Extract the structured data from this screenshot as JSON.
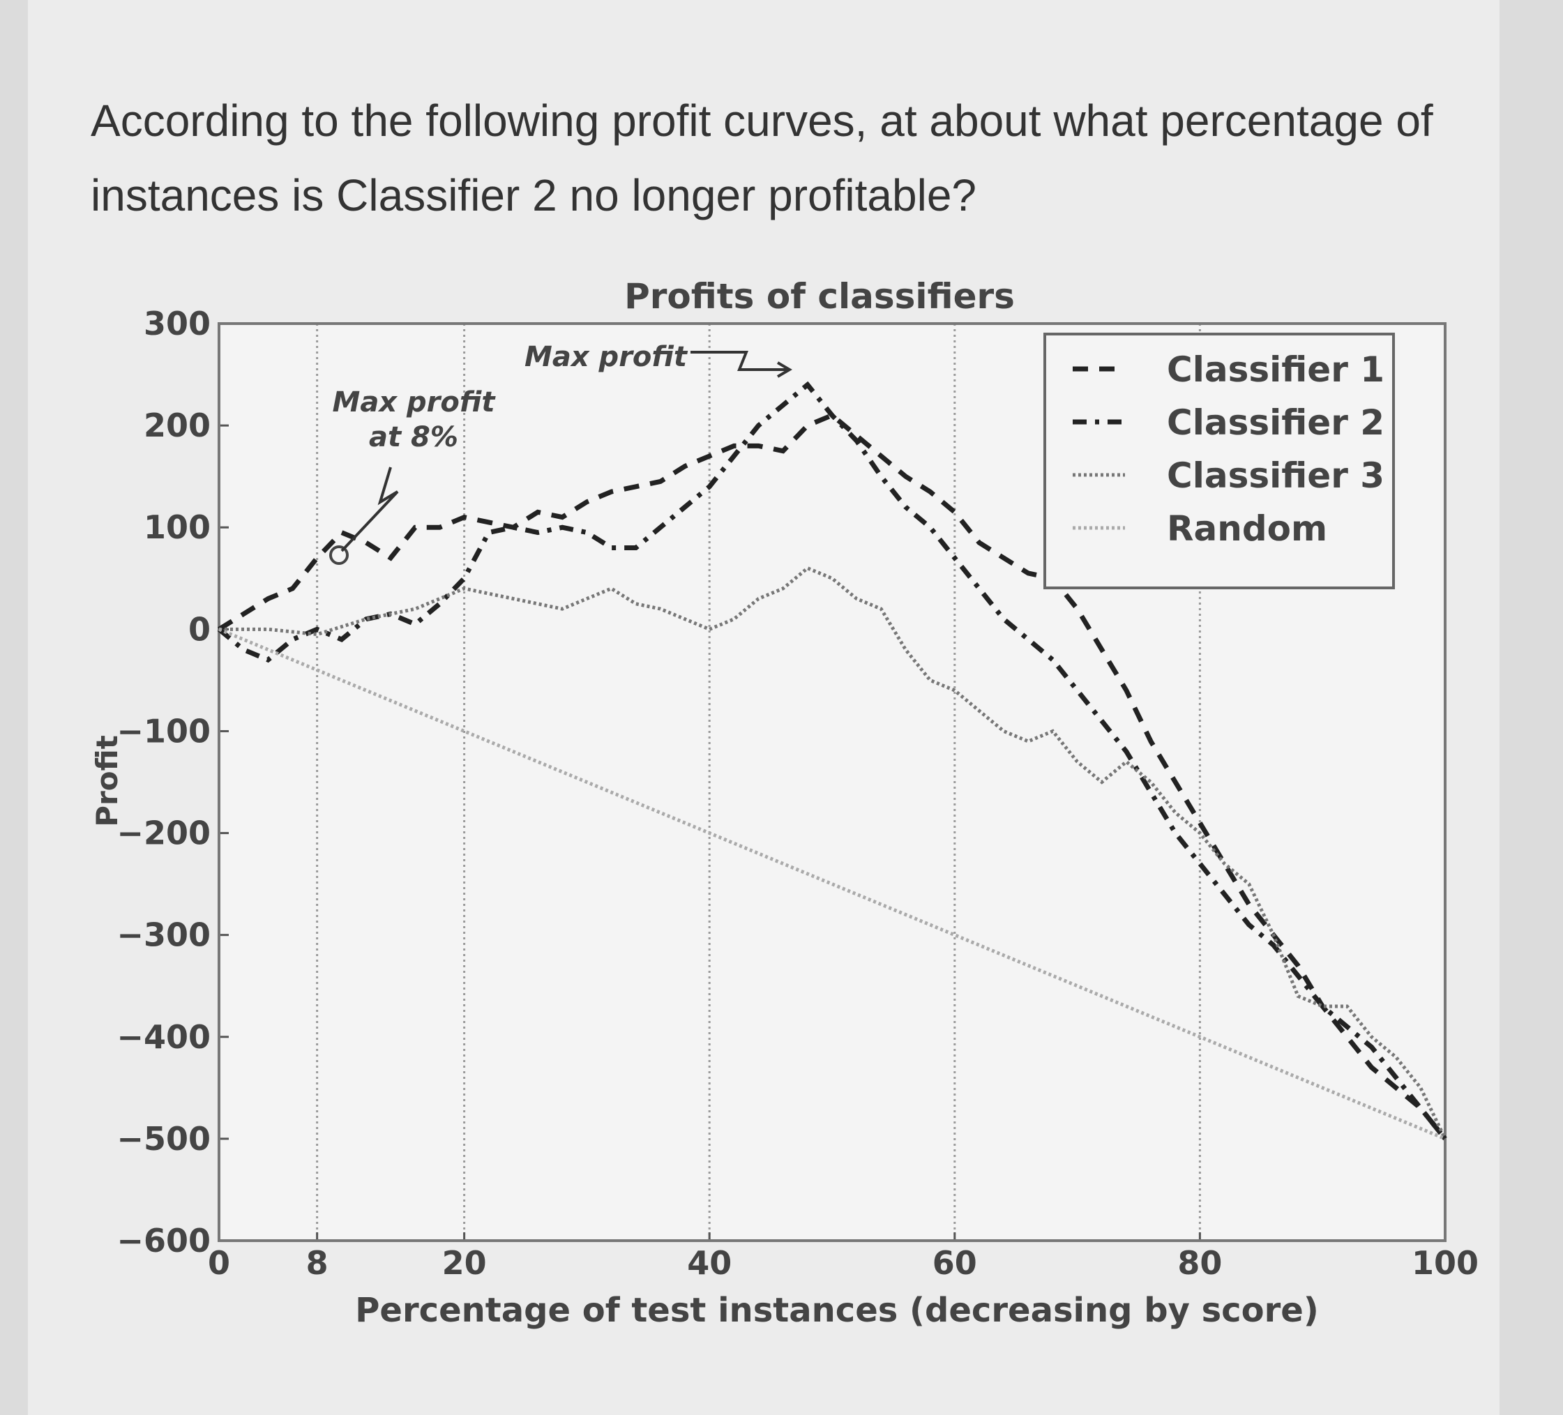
{
  "question": "According to the following profit curves, at about what percentage of instances is Classifier 2 no longer profitable?",
  "chart_data": {
    "type": "line",
    "title": "Profits of classifiers",
    "x_label": "Percentage of test instances (decreasing by score)",
    "y_label": "Profit",
    "xlim": [
      0,
      100
    ],
    "ylim": [
      -600,
      300
    ],
    "xticks": [
      0,
      8,
      20,
      40,
      60,
      80,
      100
    ],
    "yticks": [
      300,
      200,
      100,
      0,
      {
        "value": -100,
        "label": "−100"
      },
      {
        "value": -200,
        "label": "−200"
      },
      {
        "value": -300,
        "label": "−300"
      },
      {
        "value": -400,
        "label": "−400"
      },
      {
        "value": -500,
        "label": "−500"
      },
      {
        "value": -600,
        "label": "−600"
      }
    ],
    "grid": "x",
    "legend": "upper right",
    "annotations": [
      "Max profit",
      "at 8%",
      "Max profit"
    ],
    "series": [
      {
        "name": "Classifier 1",
        "color": "#222222",
        "linestyle": "dashed",
        "x": [
          0,
          2,
          4,
          6,
          8,
          10,
          12,
          14,
          16,
          18,
          20,
          22,
          24,
          26,
          28,
          30,
          32,
          34,
          36,
          38,
          40,
          42,
          44,
          46,
          48,
          50,
          52,
          54,
          56,
          58,
          60,
          62,
          64,
          66,
          68,
          70,
          72,
          74,
          76,
          78,
          80,
          82,
          84,
          86,
          88,
          90,
          92,
          94,
          96,
          98,
          100
        ],
        "values": [
          0,
          15,
          30,
          40,
          70,
          95,
          85,
          70,
          100,
          100,
          110,
          105,
          100,
          115,
          110,
          125,
          135,
          140,
          145,
          160,
          170,
          180,
          180,
          175,
          200,
          210,
          190,
          170,
          150,
          135,
          115,
          85,
          70,
          55,
          50,
          20,
          -20,
          -60,
          -110,
          -150,
          -190,
          -230,
          -270,
          -300,
          -330,
          -370,
          -400,
          -430,
          -450,
          -470,
          -500
        ]
      },
      {
        "name": "Classifier 2",
        "color": "#222222",
        "linestyle": "dashdot",
        "x": [
          0,
          2,
          4,
          6,
          8,
          10,
          12,
          14,
          16,
          18,
          20,
          22,
          24,
          26,
          28,
          30,
          32,
          34,
          36,
          38,
          40,
          42,
          44,
          46,
          48,
          50,
          52,
          54,
          56,
          58,
          60,
          62,
          64,
          66,
          68,
          70,
          72,
          74,
          76,
          78,
          80,
          82,
          84,
          86,
          88,
          90,
          92,
          94,
          96,
          98,
          100
        ],
        "values": [
          0,
          -20,
          -30,
          -10,
          0,
          -10,
          10,
          15,
          5,
          25,
          50,
          95,
          100,
          95,
          100,
          95,
          80,
          80,
          100,
          120,
          140,
          170,
          200,
          220,
          240,
          210,
          185,
          150,
          120,
          100,
          70,
          40,
          10,
          -10,
          -30,
          -60,
          -90,
          -120,
          -160,
          -200,
          -230,
          -260,
          -290,
          -310,
          -340,
          -370,
          -390,
          -410,
          -440,
          -470,
          -500
        ]
      },
      {
        "name": "Classifier 3",
        "color": "#777777",
        "linestyle": "dotted",
        "x": [
          0,
          4,
          8,
          12,
          16,
          20,
          24,
          28,
          30,
          32,
          34,
          36,
          38,
          40,
          42,
          44,
          46,
          48,
          50,
          52,
          54,
          56,
          58,
          60,
          62,
          64,
          66,
          68,
          70,
          72,
          74,
          76,
          78,
          80,
          82,
          84,
          86,
          88,
          90,
          92,
          94,
          96,
          98,
          100
        ],
        "values": [
          0,
          0,
          -5,
          10,
          20,
          40,
          30,
          20,
          30,
          40,
          25,
          20,
          10,
          0,
          10,
          30,
          40,
          60,
          50,
          30,
          20,
          -20,
          -50,
          -60,
          -80,
          -100,
          -110,
          -100,
          -130,
          -150,
          -130,
          -150,
          -180,
          -200,
          -230,
          -250,
          -300,
          -360,
          -370,
          -370,
          -400,
          -420,
          -450,
          -500
        ]
      },
      {
        "name": "Random",
        "color": "#aaaaaa",
        "linestyle": "dotted",
        "x": [
          0,
          100
        ],
        "values": [
          0,
          -500
        ]
      }
    ]
  }
}
